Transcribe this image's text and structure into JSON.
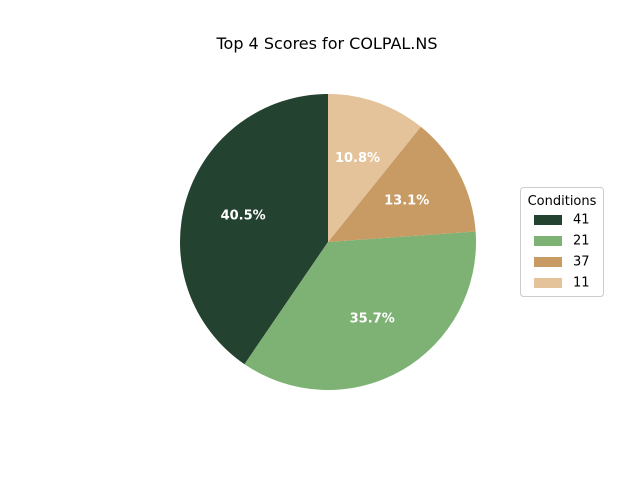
{
  "chart_data": {
    "type": "pie",
    "title": "Top 4 Scores for COLPAL.NS",
    "legend_title": "Conditions",
    "legend_position": "right",
    "slices": [
      {
        "label": "41",
        "value": 40.5,
        "pct_label": "40.5%",
        "color": "#244230",
        "text_color": "#ffffff"
      },
      {
        "label": "21",
        "value": 35.7,
        "pct_label": "35.7%",
        "color": "#7db274",
        "text_color": "#ffffff"
      },
      {
        "label": "37",
        "value": 13.1,
        "pct_label": "13.1%",
        "color": "#c89a64",
        "text_color": "#ffffff"
      },
      {
        "label": "11",
        "value": 10.8,
        "pct_label": "10.8%",
        "color": "#e4c39a",
        "text_color": "#ffffff"
      }
    ],
    "start_angle": "top",
    "direction": "counter-clockwise"
  }
}
